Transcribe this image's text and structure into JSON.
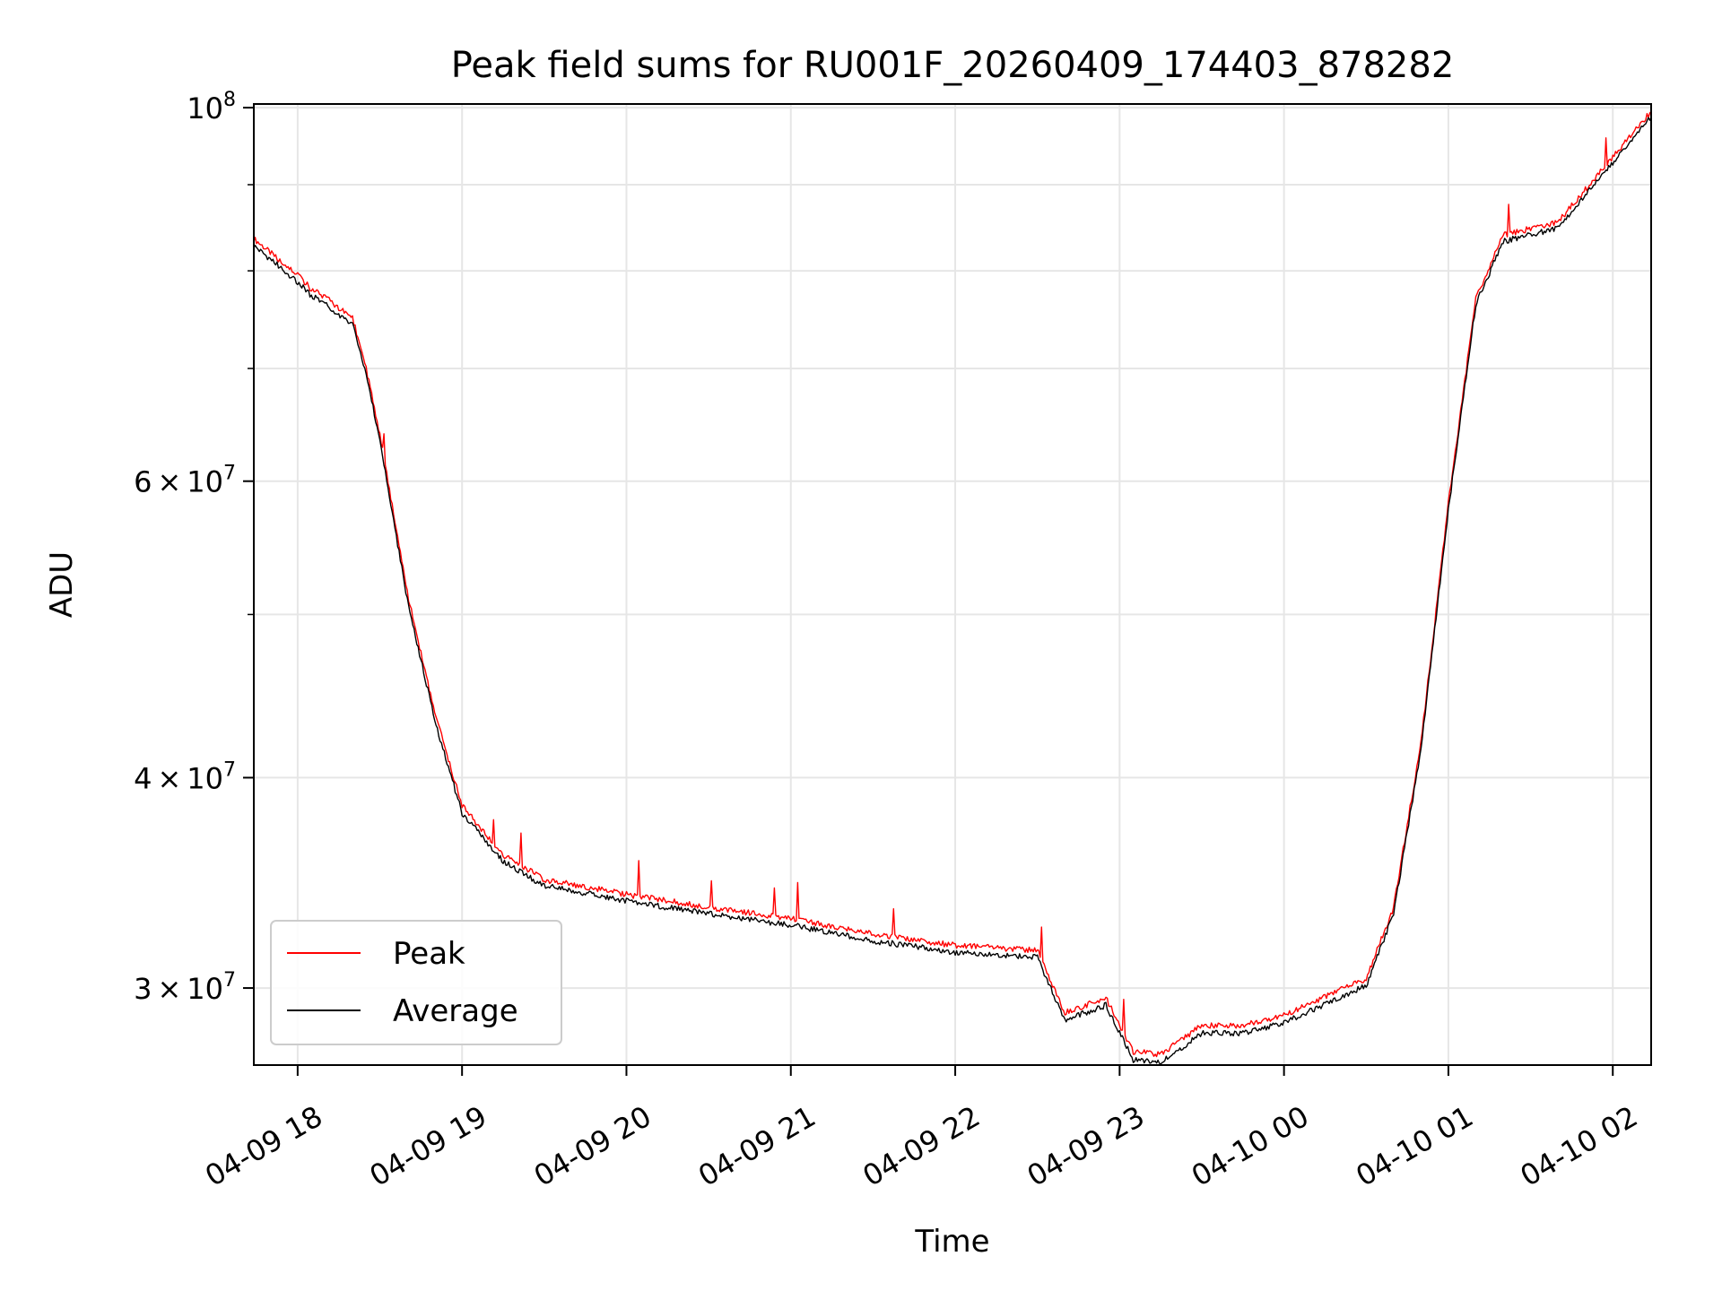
{
  "chart_data": {
    "type": "line",
    "title": "Peak field sums for RU001F_20260409_174403_878282",
    "xlabel": "Time",
    "ylabel": "ADU",
    "x_axis": "datetime",
    "y_scale": "log",
    "xlim": [
      "04-09 17:44",
      "04-10 02:14"
    ],
    "ylim": [
      27000000,
      100500000
    ],
    "grid": true,
    "legend": "lower-left",
    "x_ticks": [
      "04-09 18",
      "04-09 19",
      "04-09 20",
      "04-09 21",
      "04-09 22",
      "04-09 23",
      "04-10 00",
      "04-10 01",
      "04-10 02"
    ],
    "y_tick_labels": [
      {
        "value": 30000000,
        "mantissa": "3",
        "exponent": "7"
      },
      {
        "value": 40000000,
        "mantissa": "4",
        "exponent": "7"
      },
      {
        "value": 60000000,
        "mantissa": "6",
        "exponent": "7"
      },
      {
        "value": 100000000,
        "mantissa": "10",
        "exponent": "8"
      }
    ],
    "y_minor_ticks": [
      50000000,
      70000000,
      80000000,
      90000000
    ],
    "x": [
      "04-09 17:44",
      "04-09 17:52",
      "04-09 18:00",
      "04-09 18:05",
      "04-09 18:10",
      "04-09 18:15",
      "04-09 18:20",
      "04-09 18:25",
      "04-09 18:30",
      "04-09 18:40",
      "04-09 18:50",
      "04-09 19:00",
      "04-09 19:15",
      "04-09 19:30",
      "04-09 20:00",
      "04-09 20:30",
      "04-09 21:00",
      "04-09 21:30",
      "04-09 22:00",
      "04-09 22:30",
      "04-09 22:40",
      "04-09 22:55",
      "04-09 23:05",
      "04-09 23:15",
      "04-09 23:30",
      "04-09 23:45",
      "04-10 00:00",
      "04-10 00:30",
      "04-10 00:40",
      "04-10 00:50",
      "04-10 01:00",
      "04-10 01:10",
      "04-10 01:20",
      "04-10 01:40",
      "04-10 02:00",
      "04-10 02:14"
    ],
    "series": [
      {
        "name": "Peak",
        "color": "#ff0000",
        "values": [
          83600000,
          81500000,
          79600000,
          78000000,
          77200000,
          76000000,
          75100000,
          70000000,
          64000000,
          51500000,
          43700000,
          38500000,
          36000000,
          34800000,
          34100000,
          33500000,
          33000000,
          32300000,
          31800000,
          31600000,
          29000000,
          29600000,
          27500000,
          27400000,
          28500000,
          28500000,
          28900000,
          30400000,
          33500000,
          42000000,
          58200000,
          77000000,
          84000000,
          85500000,
          93500000,
          99500000
        ]
      },
      {
        "name": "Average",
        "color": "#000000",
        "values": [
          82800000,
          80800000,
          78800000,
          77300000,
          76500000,
          75300000,
          74400000,
          69500000,
          63500000,
          51000000,
          43300000,
          38100000,
          35700000,
          34500000,
          33800000,
          33200000,
          32700000,
          32000000,
          31500000,
          31300000,
          28700000,
          29300000,
          27200000,
          27100000,
          28200000,
          28200000,
          28600000,
          30100000,
          33200000,
          41600000,
          57700000,
          76400000,
          83300000,
          84800000,
          92700000,
          98700000
        ]
      }
    ]
  }
}
